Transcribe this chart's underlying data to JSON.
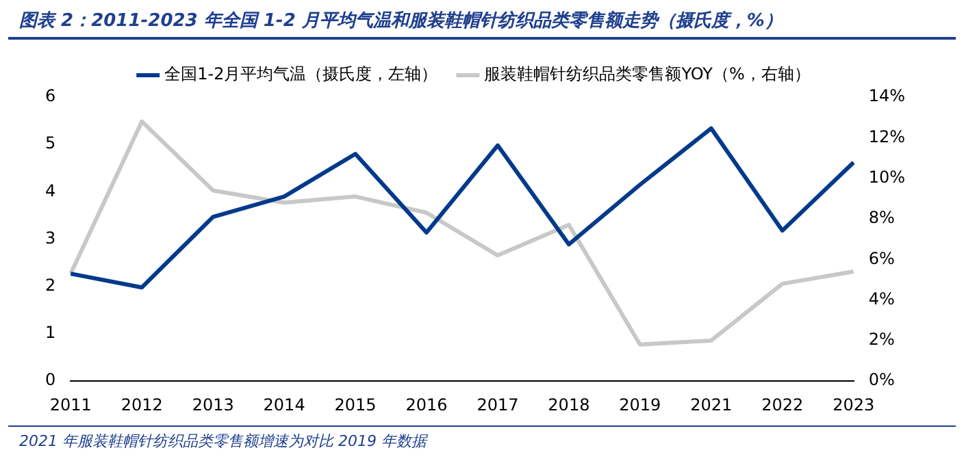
{
  "chart_data": {
    "type": "line",
    "title": "图表 2：2011-2023 年全国 1-2 月平均气温和服装鞋帽针纺织品类零售额走势（摄氏度，%）",
    "categories": [
      "2011",
      "2012",
      "2013",
      "2014",
      "2015",
      "2016",
      "2017",
      "2018",
      "2019",
      "2021",
      "2022",
      "2023"
    ],
    "series": [
      {
        "name": "全国1-2月平均气温（摄氏度，左轴）",
        "color": "#003a8c",
        "values": [
          2.27,
          1.98,
          3.47,
          3.9,
          4.8,
          3.14,
          4.98,
          2.89,
          4.15,
          5.34,
          3.18,
          4.62
        ]
      },
      {
        "name": "服装鞋帽针纺织品类零售额YOY（%，右轴）",
        "color": "#c8c8c8",
        "axis": "y2",
        "values": [
          5.3,
          12.8,
          9.4,
          8.8,
          9.1,
          8.3,
          6.2,
          7.7,
          1.8,
          2.0,
          4.8,
          5.4
        ]
      }
    ],
    "ylim": [
      0,
      6
    ],
    "yticks": [
      0,
      1,
      2,
      3,
      4,
      5,
      6
    ],
    "y2lim": [
      0,
      14
    ],
    "y2ticks": [
      {
        "value": 0,
        "label": "0%"
      },
      {
        "value": 2,
        "label": "2%"
      },
      {
        "value": 4,
        "label": "4%"
      },
      {
        "value": 6,
        "label": "6%"
      },
      {
        "value": 8,
        "label": "8%"
      },
      {
        "value": 10,
        "label": "10%"
      },
      {
        "value": 12,
        "label": "12%"
      },
      {
        "value": 14,
        "label": "14%"
      }
    ],
    "legend": "top",
    "grid": false,
    "marker": "none",
    "annotations": [
      "2021 年服装鞋帽针纺织品类零售额增速为对比 2019 年数据"
    ]
  }
}
